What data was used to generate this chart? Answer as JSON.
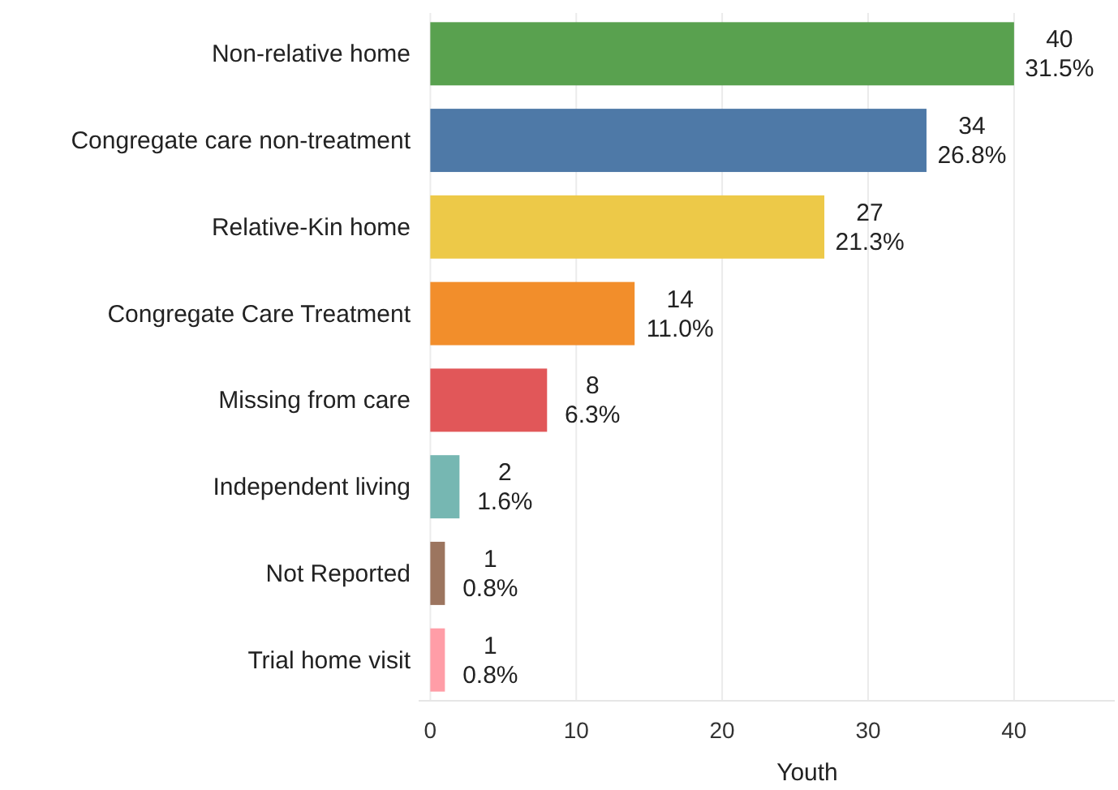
{
  "chart_data": {
    "type": "bar",
    "orientation": "horizontal",
    "categories": [
      "Non-relative home",
      "Congregate care non-treatment",
      "Relative-Kin home",
      "Congregate Care Treatment",
      "Missing from care",
      "Independent living",
      "Not Reported",
      "Trial home visit"
    ],
    "values": [
      40,
      34,
      27,
      14,
      8,
      2,
      1,
      1
    ],
    "colors": [
      "#59a14f",
      "#4e79a7",
      "#edc948",
      "#f28e2b",
      "#e15759",
      "#76b7b2",
      "#9c755f",
      "#ff9da7"
    ],
    "value_labels": [
      "40\n31.5%",
      "34\n26.8%",
      "27\n21.3%",
      "14\n11.0%",
      "8\n6.3%",
      "2\n1.6%",
      "1\n0.8%",
      "1\n0.8%"
    ],
    "xlabel": "Youth",
    "xlim": [
      -0.8,
      46.9
    ],
    "xticks": [
      0,
      10,
      20,
      30,
      40
    ],
    "grid": "x"
  }
}
